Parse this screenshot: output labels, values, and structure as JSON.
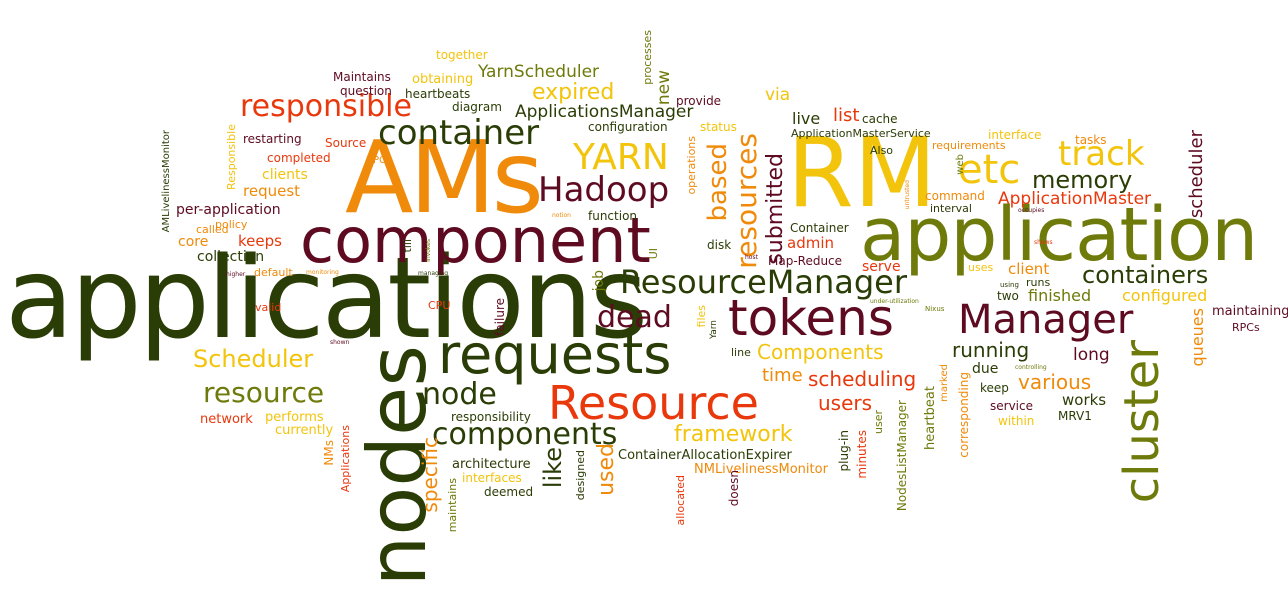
{
  "palette": {
    "dark_green": "#2b3d06",
    "olive": "#6e7a0a",
    "maroon": "#5e0b21",
    "orange": "#f08a0a",
    "yellow": "#f2c40c",
    "red": "#e8380c"
  },
  "words": [
    {
      "text": "applications",
      "color": "dark_green"
    },
    {
      "text": "nodes",
      "color": "dark_green"
    },
    {
      "text": "AMs",
      "color": "orange"
    },
    {
      "text": "RM",
      "color": "yellow"
    },
    {
      "text": "application",
      "color": "olive"
    },
    {
      "text": "component",
      "color": "maroon"
    },
    {
      "text": "requests",
      "color": "dark_green"
    },
    {
      "text": "Resource",
      "color": "red"
    },
    {
      "text": "tokens",
      "color": "maroon"
    },
    {
      "text": "ResourceManager",
      "color": "dark_green"
    },
    {
      "text": "Manager",
      "color": "maroon"
    },
    {
      "text": "container",
      "color": "dark_green"
    },
    {
      "text": "Hadoop",
      "color": "maroon"
    },
    {
      "text": "YARN",
      "color": "yellow"
    },
    {
      "text": "etc",
      "color": "yellow"
    },
    {
      "text": "track",
      "color": "yellow"
    },
    {
      "text": "responsible",
      "color": "red"
    },
    {
      "text": "memory",
      "color": "dark_green"
    },
    {
      "text": "components",
      "color": "dark_green"
    },
    {
      "text": "cluster",
      "color": "olive"
    },
    {
      "text": "containers",
      "color": "dark_green"
    },
    {
      "text": "dead",
      "color": "maroon"
    },
    {
      "text": "resource",
      "color": "olive"
    },
    {
      "text": "node",
      "color": "dark_green"
    },
    {
      "text": "Scheduler",
      "color": "yellow"
    },
    {
      "text": "framework",
      "color": "yellow"
    },
    {
      "text": "Components",
      "color": "yellow"
    },
    {
      "text": "scheduling",
      "color": "red"
    },
    {
      "text": "various",
      "color": "orange"
    },
    {
      "text": "running",
      "color": "dark_green"
    },
    {
      "text": "resources",
      "color": "orange"
    },
    {
      "text": "based",
      "color": "orange"
    },
    {
      "text": "submitted",
      "color": "maroon"
    },
    {
      "text": "ApplicationsManager",
      "color": "dark_green"
    },
    {
      "text": "expired",
      "color": "yellow"
    },
    {
      "text": "YarnScheduler",
      "color": "olive"
    },
    {
      "text": "ApplicationMaster",
      "color": "red"
    },
    {
      "text": "users",
      "color": "red"
    },
    {
      "text": "time",
      "color": "orange"
    },
    {
      "text": "like",
      "color": "dark_green"
    },
    {
      "text": "specific",
      "color": "orange"
    },
    {
      "text": "used",
      "color": "orange"
    },
    {
      "text": "scheduler",
      "color": "maroon"
    },
    {
      "text": "queues",
      "color": "orange"
    },
    {
      "text": "long",
      "color": "maroon"
    },
    {
      "text": "works",
      "color": "dark_green"
    },
    {
      "text": "finished",
      "color": "olive"
    },
    {
      "text": "configured",
      "color": "yellow"
    },
    {
      "text": "client",
      "color": "orange"
    },
    {
      "text": "maintaining",
      "color": "maroon"
    },
    {
      "text": "RPCs",
      "color": "maroon"
    },
    {
      "text": "MRV1",
      "color": "dark_green"
    },
    {
      "text": "due",
      "color": "dark_green"
    },
    {
      "text": "keep",
      "color": "dark_green"
    },
    {
      "text": "service",
      "color": "maroon"
    },
    {
      "text": "within",
      "color": "yellow"
    },
    {
      "text": "two",
      "color": "dark_green"
    },
    {
      "text": "runs",
      "color": "dark_green"
    },
    {
      "text": "uses",
      "color": "yellow"
    },
    {
      "text": "using",
      "color": "dark_green"
    },
    {
      "text": "controlling",
      "color": "olive"
    },
    {
      "text": "corresponding",
      "color": "orange"
    },
    {
      "text": "heartbeat",
      "color": "olive"
    },
    {
      "text": "marked",
      "color": "orange"
    },
    {
      "text": "web",
      "color": "olive"
    },
    {
      "text": "Nixus",
      "color": "olive"
    },
    {
      "text": "under-utilization",
      "color": "olive"
    },
    {
      "text": "requirements",
      "color": "orange"
    },
    {
      "text": "interface",
      "color": "yellow"
    },
    {
      "text": "tasks",
      "color": "orange"
    },
    {
      "text": "command",
      "color": "orange"
    },
    {
      "text": "interval",
      "color": "dark_green"
    },
    {
      "text": "occupies",
      "color": "maroon"
    },
    {
      "text": "shows",
      "color": "red"
    },
    {
      "text": "untrusted",
      "color": "orange"
    },
    {
      "text": "Also",
      "color": "dark_green"
    },
    {
      "text": "cache",
      "color": "dark_green"
    },
    {
      "text": "live",
      "color": "dark_green"
    },
    {
      "text": "list",
      "color": "red"
    },
    {
      "text": "via",
      "color": "yellow"
    },
    {
      "text": "ApplicationMasterService",
      "color": "dark_green"
    },
    {
      "text": "Container",
      "color": "dark_green"
    },
    {
      "text": "admin",
      "color": "red"
    },
    {
      "text": "Map-Reduce",
      "color": "maroon"
    },
    {
      "text": "serve",
      "color": "red"
    },
    {
      "text": "host",
      "color": "maroon"
    },
    {
      "text": "disk",
      "color": "dark_green"
    },
    {
      "text": "UI",
      "color": "olive"
    },
    {
      "text": "job",
      "color": "olive"
    },
    {
      "text": "files",
      "color": "yellow"
    },
    {
      "text": "Yarn",
      "color": "dark_green"
    },
    {
      "text": "failure",
      "color": "maroon"
    },
    {
      "text": "line",
      "color": "dark_green"
    },
    {
      "text": "plug-in",
      "color": "dark_green"
    },
    {
      "text": "minutes",
      "color": "red"
    },
    {
      "text": "user",
      "color": "olive"
    },
    {
      "text": "NodesListManager",
      "color": "olive"
    },
    {
      "text": "ContainerAllocationExpirer",
      "color": "dark_green"
    },
    {
      "text": "NMLivelinessMonitor",
      "color": "orange"
    },
    {
      "text": "doesn",
      "color": "maroon"
    },
    {
      "text": "allocated",
      "color": "red"
    },
    {
      "text": "designed",
      "color": "dark_green"
    },
    {
      "text": "architecture",
      "color": "dark_green"
    },
    {
      "text": "interfaces",
      "color": "yellow"
    },
    {
      "text": "deemed",
      "color": "dark_green"
    },
    {
      "text": "maintains",
      "color": "olive"
    },
    {
      "text": "responsibility",
      "color": "dark_green"
    },
    {
      "text": "network",
      "color": "red"
    },
    {
      "text": "performs",
      "color": "yellow"
    },
    {
      "text": "currently",
      "color": "yellow"
    },
    {
      "text": "NMs",
      "color": "orange"
    },
    {
      "text": "Applications",
      "color": "red"
    },
    {
      "text": "shown",
      "color": "maroon"
    },
    {
      "text": "CPU",
      "color": "red"
    },
    {
      "text": "valid",
      "color": "red"
    },
    {
      "text": "default",
      "color": "orange"
    },
    {
      "text": "monitoring",
      "color": "orange"
    },
    {
      "text": "higher",
      "color": "maroon"
    },
    {
      "text": "collection",
      "color": "dark_green"
    },
    {
      "text": "keeps",
      "color": "red"
    },
    {
      "text": "core",
      "color": "orange"
    },
    {
      "text": "called",
      "color": "orange"
    },
    {
      "text": "policy",
      "color": "orange"
    },
    {
      "text": "per-application",
      "color": "maroon"
    },
    {
      "text": "request",
      "color": "orange"
    },
    {
      "text": "clients",
      "color": "yellow"
    },
    {
      "text": "completed",
      "color": "red"
    },
    {
      "text": "RPC",
      "color": "orange"
    },
    {
      "text": "Source",
      "color": "red"
    },
    {
      "text": "restarting",
      "color": "maroon"
    },
    {
      "text": "Responsible",
      "color": "yellow"
    },
    {
      "text": "AMLivelinessMonitor",
      "color": "dark_green"
    },
    {
      "text": "managing",
      "color": "dark_green"
    },
    {
      "text": "till",
      "color": "dark_green"
    },
    {
      "text": "Invokes",
      "color": "olive"
    },
    {
      "text": "notion",
      "color": "orange"
    },
    {
      "text": "function",
      "color": "dark_green"
    },
    {
      "text": "operations",
      "color": "orange"
    },
    {
      "text": "configuration",
      "color": "dark_green"
    },
    {
      "text": "status",
      "color": "yellow"
    },
    {
      "text": "provide",
      "color": "maroon"
    },
    {
      "text": "processes",
      "color": "olive"
    },
    {
      "text": "new",
      "color": "olive"
    },
    {
      "text": "diagram",
      "color": "dark_green"
    },
    {
      "text": "question",
      "color": "maroon"
    },
    {
      "text": "heartbeats",
      "color": "dark_green"
    },
    {
      "text": "Maintains",
      "color": "maroon"
    },
    {
      "text": "obtaining",
      "color": "yellow"
    },
    {
      "text": "together",
      "color": "yellow"
    }
  ]
}
